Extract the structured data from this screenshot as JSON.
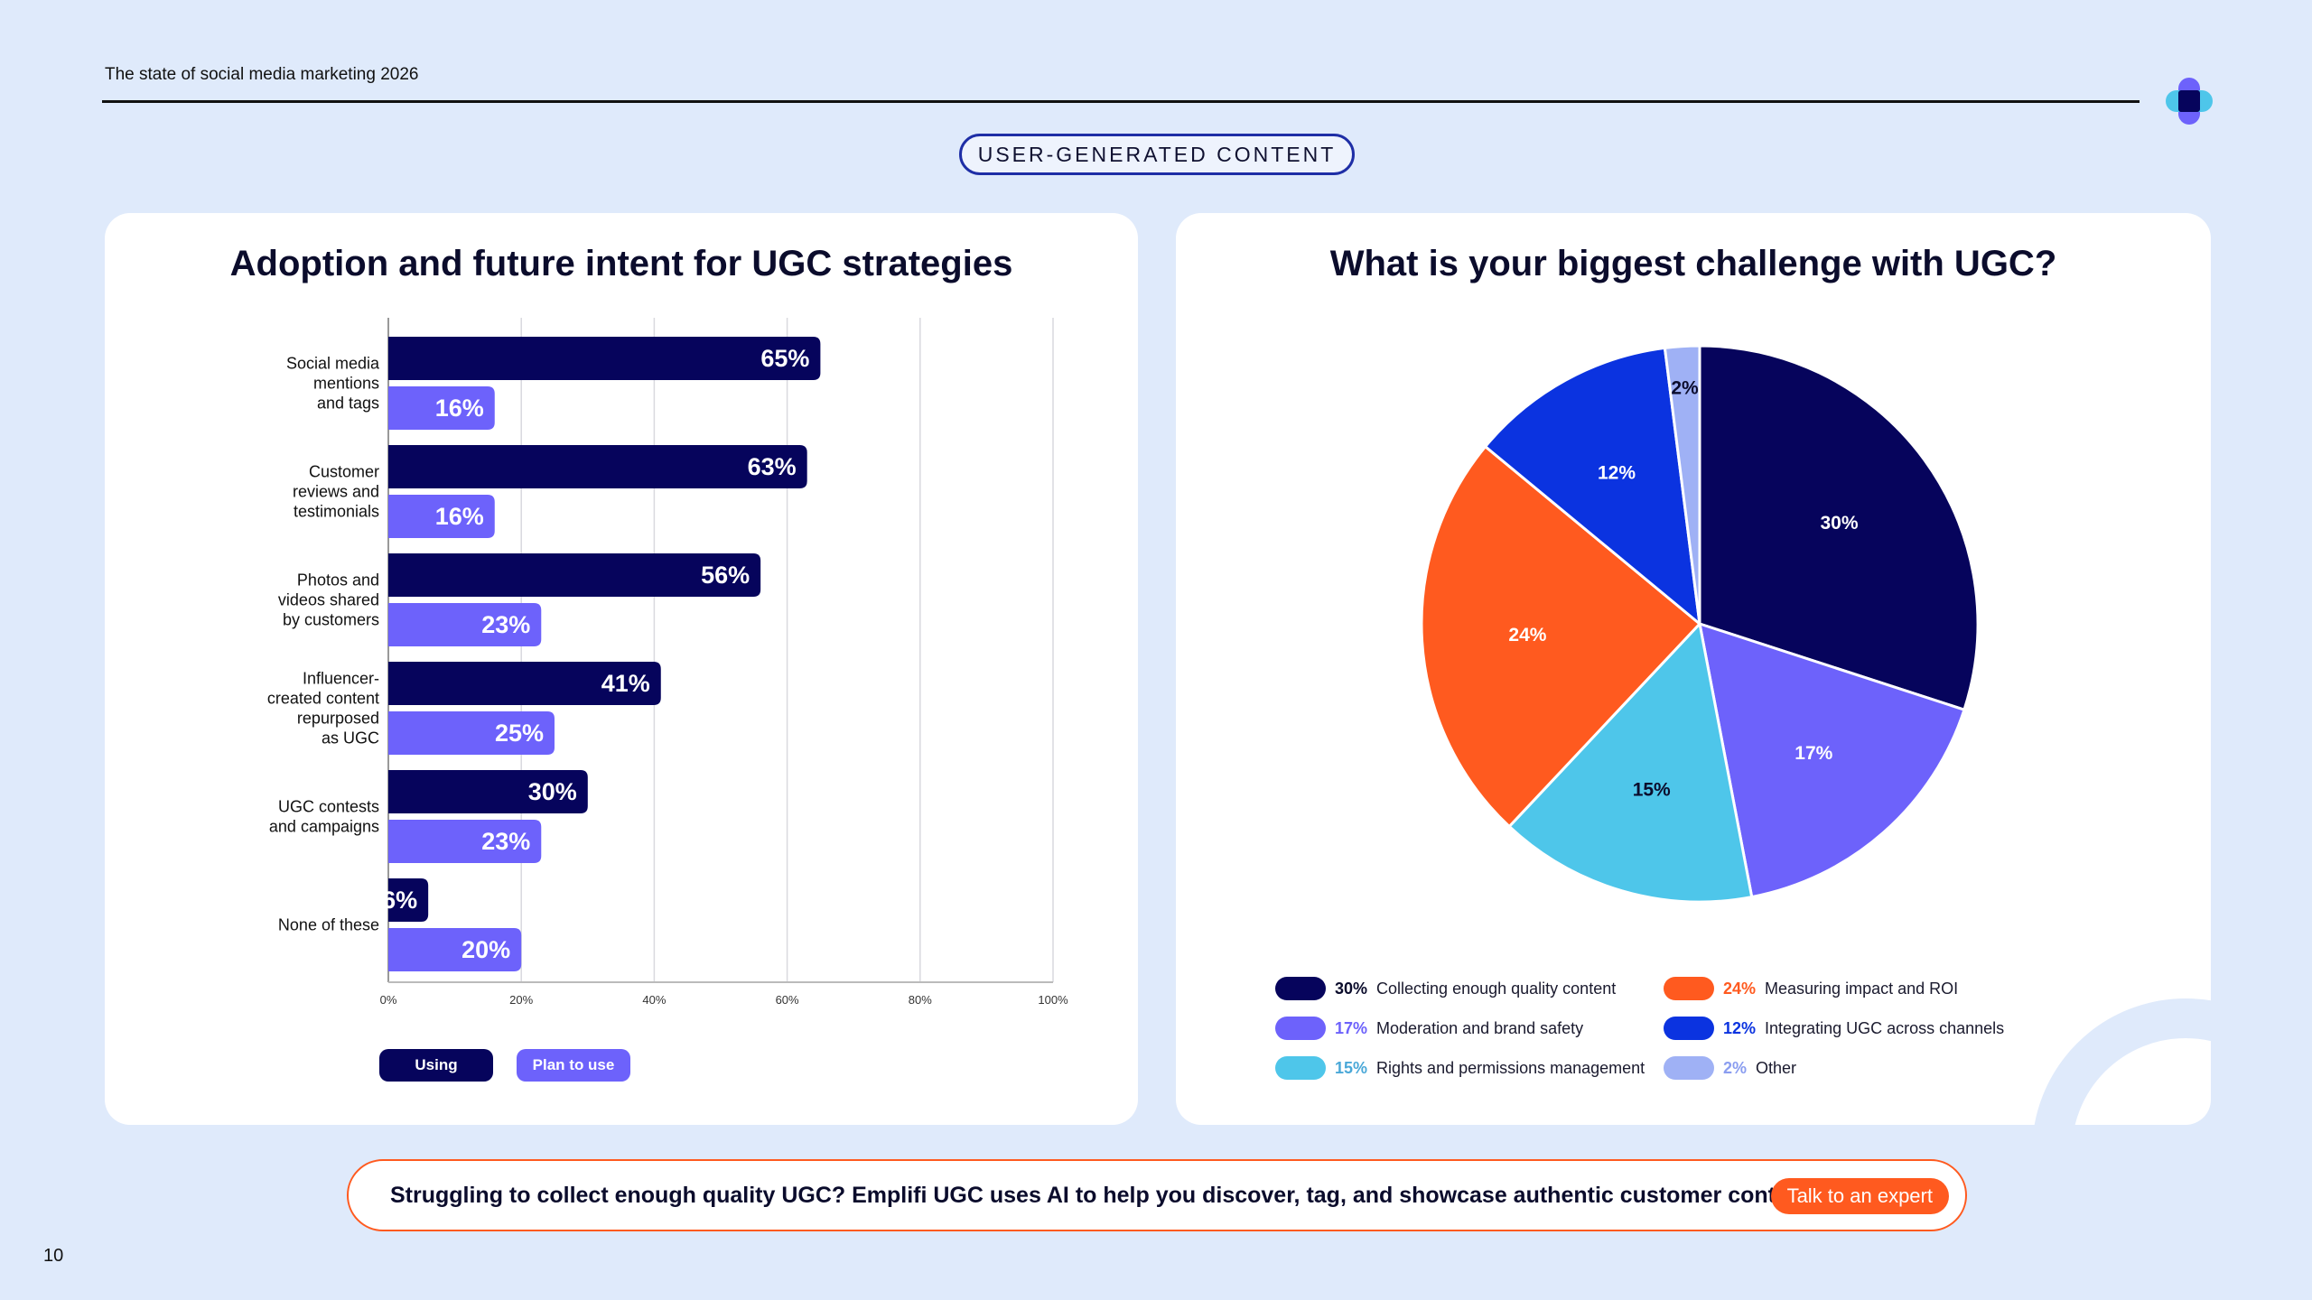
{
  "header": {
    "doc_title": "The state of social media marketing 2026",
    "section_label": "USER-GENERATED CONTENT",
    "page_number": "10"
  },
  "colors": {
    "using": "#06045c",
    "plan": "#6d62fb",
    "accent": "#ff5a1f",
    "background": "#dfeafb"
  },
  "chart_data": [
    {
      "type": "bar",
      "orientation": "horizontal",
      "title": "Adoption and future intent for UGC strategies",
      "categories": [
        [
          "Social media",
          "mentions",
          "and tags"
        ],
        [
          "Customer",
          "reviews and",
          "testimonials"
        ],
        [
          "Photos and",
          "videos shared",
          "by customers"
        ],
        [
          "Influencer-",
          "created content",
          "repurposed",
          "as UGC"
        ],
        [
          "UGC contests",
          "and campaigns"
        ],
        [
          "None of these"
        ]
      ],
      "series": [
        {
          "name": "Using",
          "values": [
            65,
            63,
            56,
            41,
            30,
            6
          ],
          "color": "#06045c"
        },
        {
          "name": "Plan to use",
          "values": [
            16,
            16,
            23,
            25,
            23,
            20
          ],
          "color": "#6d62fb"
        }
      ],
      "xlim": [
        0,
        100
      ],
      "xticks": [
        "0%",
        "20%",
        "40%",
        "60%",
        "80%",
        "100%"
      ],
      "grid": true,
      "legend": [
        "Using",
        "Plan to use"
      ]
    },
    {
      "type": "pie",
      "title": "What is your biggest challenge with UGC?",
      "slices": [
        {
          "label": "Collecting enough quality content",
          "value": 30,
          "color": "#06045c",
          "label_color": "#ffffff",
          "legend_pct_color": "#0b0c2c"
        },
        {
          "label": "Moderation and brand safety",
          "value": 17,
          "color": "#6d62fb",
          "label_color": "#ffffff",
          "legend_pct_color": "#6d62fb"
        },
        {
          "label": "Rights and permissions management",
          "value": 15,
          "color": "#4ec6ea",
          "label_color": "#0b0c2c",
          "legend_pct_color": "#4aa8d8"
        },
        {
          "label": "Measuring impact and ROI",
          "value": 24,
          "color": "#ff5a1f",
          "label_color": "#ffffff",
          "legend_pct_color": "#ff5a1f"
        },
        {
          "label": "Integrating UGC across channels",
          "value": 12,
          "color": "#0b33e0",
          "label_color": "#ffffff",
          "legend_pct_color": "#0b33e0"
        },
        {
          "label": "Other",
          "value": 2,
          "color": "#9fb1f5",
          "label_color": "#0b0c2c",
          "legend_pct_color": "#8a9df0"
        }
      ]
    }
  ],
  "cta": {
    "text": "Struggling to collect enough quality UGC? Emplifi UGC uses AI to help you discover, tag, and showcase authentic customer content.",
    "button": "Talk to an expert"
  }
}
